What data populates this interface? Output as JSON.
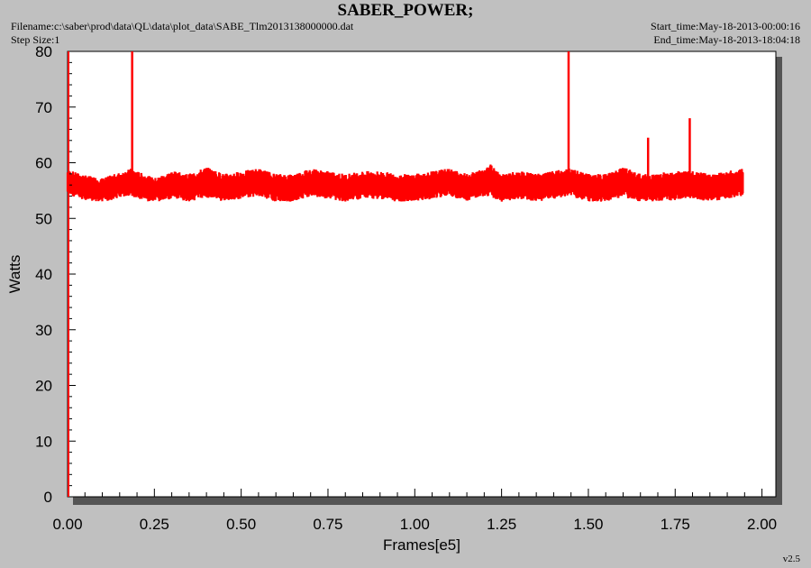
{
  "header": {
    "title": "SABER_POWER;",
    "filename": "Filename:c:\\saber\\prod\\data\\QL\\data\\plot_data\\SABE_Tlm2013138000000.dat",
    "step_size": "Step Size:1",
    "start_time": "Start_time:May-18-2013-00:00:16",
    "end_time": "End_time:May-18-2013-18:04:18"
  },
  "footer": {
    "version": "v2.5"
  },
  "chart_data": {
    "type": "line",
    "xlabel": "Frames[e5]",
    "ylabel": "Watts",
    "xlim": [
      0,
      2
    ],
    "ylim": [
      0,
      80
    ],
    "x_ticks": [
      "0.00",
      "0.25",
      "0.50",
      "0.75",
      "1.00",
      "1.25",
      "1.50",
      "1.75",
      "2.00"
    ],
    "y_ticks": [
      "0",
      "10",
      "20",
      "30",
      "40",
      "50",
      "60",
      "70",
      "80"
    ],
    "grid": false,
    "series_color": "#ff0000",
    "series": [
      {
        "x": [
          0.0,
          0.05,
          0.1,
          0.15,
          0.185,
          0.2,
          0.25,
          0.3,
          0.35,
          0.4,
          0.45,
          0.5,
          0.55,
          0.6,
          0.65,
          0.7,
          0.75,
          0.8,
          0.85,
          0.9,
          0.95,
          1.0,
          1.05,
          1.1,
          1.15,
          1.2,
          1.215,
          1.25,
          1.3,
          1.35,
          1.4,
          1.445,
          1.5,
          1.55,
          1.6,
          1.65,
          1.675,
          1.7,
          1.75,
          1.79,
          1.8,
          1.85,
          1.9,
          1.945
        ],
        "y_mean": [
          56.5,
          55.5,
          55.0,
          56.0,
          56.5,
          56.0,
          55.0,
          56.0,
          55.5,
          56.5,
          55.5,
          56.0,
          56.5,
          55.5,
          55.5,
          56.5,
          56.0,
          55.5,
          56.0,
          56.0,
          55.5,
          55.5,
          56.0,
          56.5,
          55.5,
          56.5,
          57.0,
          55.5,
          56.0,
          55.5,
          56.0,
          56.5,
          55.5,
          55.5,
          56.5,
          55.5,
          55.5,
          55.5,
          56.0,
          56.0,
          56.0,
          55.5,
          56.0,
          56.5
        ],
        "y_min": [
          54.0,
          53.5,
          53.0,
          53.5,
          54.0,
          53.5,
          53.0,
          53.5,
          53.0,
          53.5,
          53.0,
          53.5,
          53.5,
          53.0,
          53.0,
          53.5,
          53.5,
          53.0,
          53.5,
          53.5,
          53.0,
          53.0,
          53.5,
          53.5,
          53.0,
          53.5,
          54.0,
          53.0,
          53.5,
          53.0,
          53.5,
          54.0,
          53.0,
          53.0,
          53.5,
          53.0,
          53.0,
          53.0,
          53.5,
          53.5,
          53.5,
          53.0,
          53.5,
          54.0
        ],
        "y_max": [
          58.5,
          58.0,
          57.5,
          58.0,
          59.0,
          58.5,
          57.5,
          58.5,
          58.0,
          59.0,
          58.0,
          58.5,
          58.5,
          58.0,
          58.0,
          58.5,
          58.5,
          58.0,
          58.5,
          58.5,
          58.0,
          58.0,
          58.5,
          58.5,
          58.0,
          58.5,
          60.0,
          58.0,
          58.5,
          58.0,
          58.5,
          59.0,
          58.0,
          58.0,
          59.0,
          58.0,
          58.0,
          58.0,
          59.0,
          58.5,
          58.5,
          58.0,
          58.5,
          59.0
        ]
      }
    ],
    "spikes": [
      {
        "x": 0.186,
        "y": 80
      },
      {
        "x": 1.443,
        "y": 80
      },
      {
        "x": 1.672,
        "y": 64.5
      },
      {
        "x": 1.792,
        "y": 68
      }
    ]
  }
}
